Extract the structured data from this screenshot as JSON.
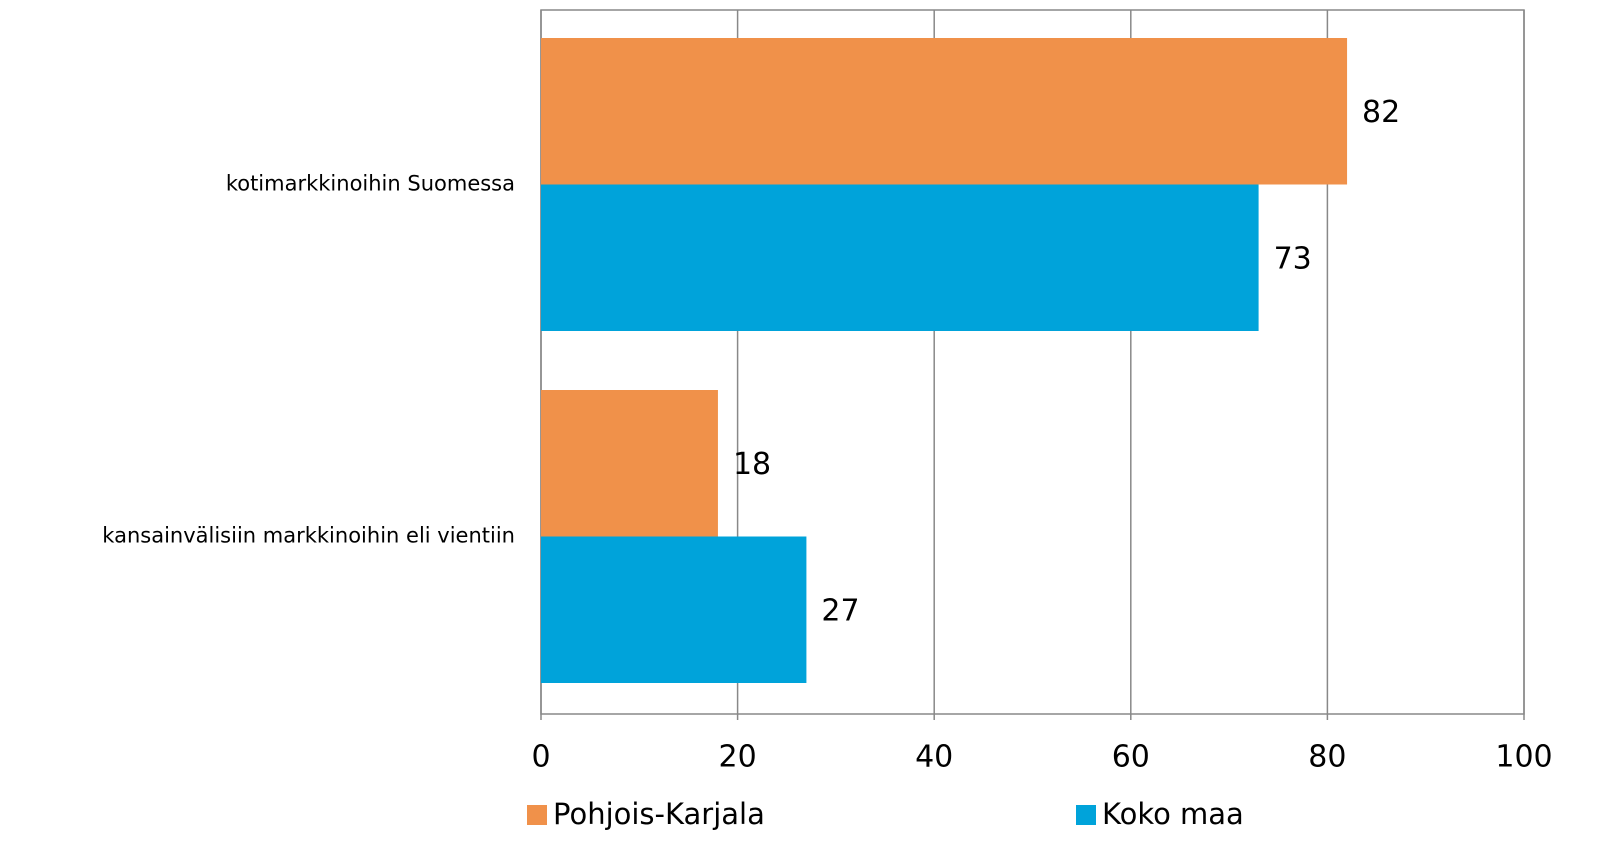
{
  "chart_data": {
    "type": "barh",
    "categories": [
      "kotimarkkinoihin Suomessa",
      "kansainvälisiin markkinoihin eli vientiin"
    ],
    "series": [
      {
        "name": "Pohjois-Karjala",
        "color": "#f0914a",
        "values": [
          82,
          18
        ]
      },
      {
        "name": "Koko maa",
        "color": "#00a3da",
        "values": [
          73,
          27
        ]
      }
    ],
    "xlim": [
      0,
      100
    ],
    "xticks": [
      0,
      20,
      40,
      60,
      80,
      100
    ],
    "grid": true,
    "legend": "bottom"
  }
}
